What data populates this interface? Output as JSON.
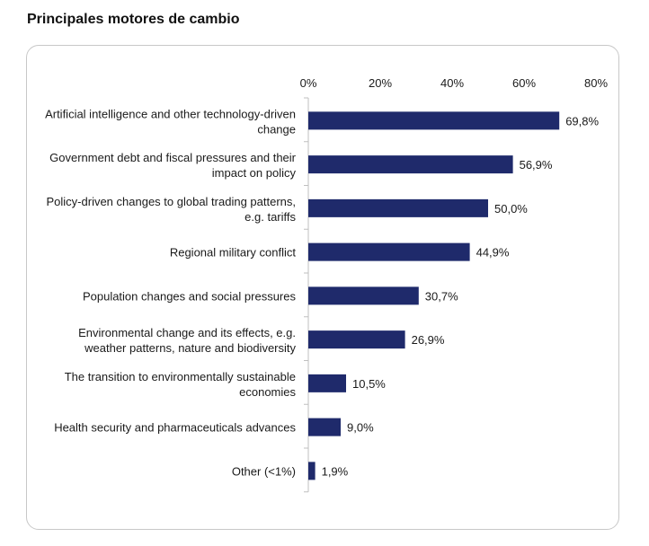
{
  "heading": "Principales motores de cambio",
  "chart_data": {
    "type": "bar",
    "orientation": "horizontal",
    "categories": [
      [
        "Artificial intelligence and other technology-driven",
        "change"
      ],
      [
        "Government debt and fiscal pressures and their",
        "impact on policy"
      ],
      [
        "Policy-driven changes to global trading patterns,",
        "e.g. tariffs"
      ],
      [
        "Regional military conflict"
      ],
      [
        "Population changes and social pressures"
      ],
      [
        "Environmental change and its effects, e.g.",
        "weather patterns, nature and biodiversity"
      ],
      [
        "The transition to environmentally sustainable",
        "economies"
      ],
      [
        "Health security and pharmaceuticals advances"
      ],
      [
        "Other (<1%)"
      ]
    ],
    "values": [
      69.8,
      56.9,
      50.0,
      44.9,
      30.7,
      26.9,
      10.5,
      9.0,
      1.9
    ],
    "value_labels": [
      "69,8%",
      "56,9%",
      "50,0%",
      "44,9%",
      "30,7%",
      "26,9%",
      "10,5%",
      "9,0%",
      "1,9%"
    ],
    "xlim": [
      0,
      80
    ],
    "x_ticks": [
      0,
      20,
      40,
      60,
      80
    ],
    "x_tick_labels": [
      "0%",
      "20%",
      "40%",
      "60%",
      "80%"
    ],
    "x_axis_position": "top",
    "grid": false,
    "bar_color": "#1f2a6b"
  }
}
